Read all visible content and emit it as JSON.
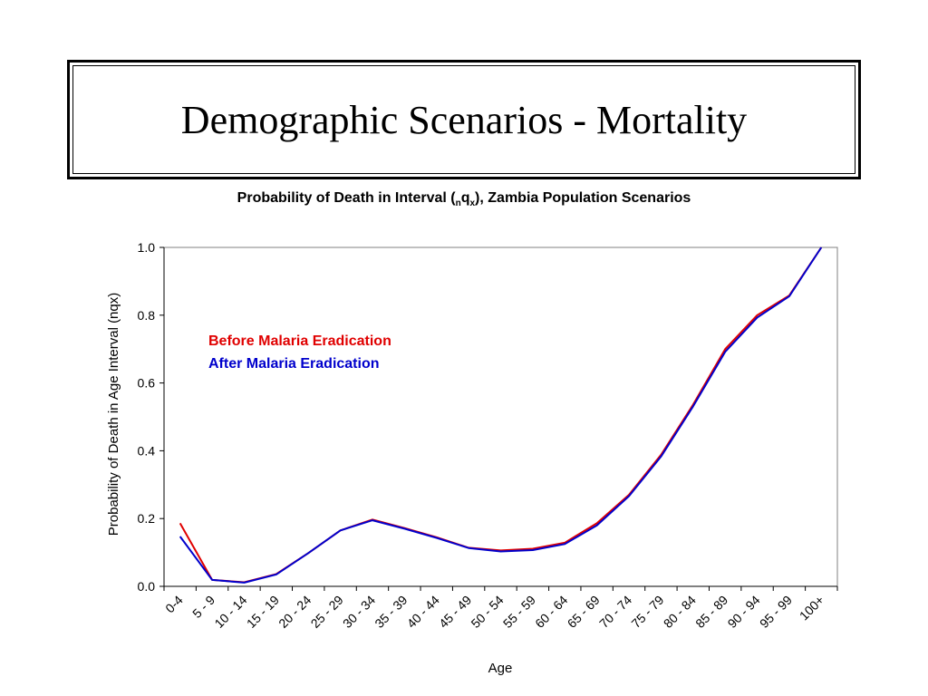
{
  "slide": {
    "title": "Demographic Scenarios - Mortality"
  },
  "chart_data": {
    "type": "line",
    "title_parts": {
      "before": "Probability of Death in Interval (",
      "sub1": "n",
      "mid": "q",
      "sub2": "x",
      "after": "), Zambia Population Scenarios"
    },
    "xlabel": "Age",
    "ylabel": "Probability of Death in Age Interval (nqx)",
    "ylim": [
      0,
      1
    ],
    "yticks": [
      "0.0",
      "0.2",
      "0.4",
      "0.6",
      "0.8",
      "1.0"
    ],
    "grid": false,
    "legend_placement": "upper-left (inside plot)",
    "categories": [
      "0-4",
      "5 - 9",
      "10 - 14",
      "15 - 19",
      "20 - 24",
      "25 - 29",
      "30 - 34",
      "35 - 39",
      "40 - 44",
      "45 - 49",
      "50 - 54",
      "55 - 59",
      "60 - 64",
      "65 - 69",
      "70 - 74",
      "75 - 79",
      "80 - 84",
      "85 - 89",
      "90 - 94",
      "95 - 99",
      "100+"
    ],
    "series": [
      {
        "name": "Before Malaria Eradication",
        "color": "#e00000",
        "values": [
          0.186,
          0.019,
          0.012,
          0.036,
          0.098,
          0.165,
          0.197,
          0.172,
          0.145,
          0.114,
          0.106,
          0.111,
          0.129,
          0.186,
          0.27,
          0.388,
          0.536,
          0.7,
          0.8,
          0.858,
          1.0
        ]
      },
      {
        "name": "After Malaria Eradication",
        "color": "#0000cc",
        "values": [
          0.147,
          0.019,
          0.011,
          0.035,
          0.098,
          0.165,
          0.195,
          0.17,
          0.143,
          0.113,
          0.103,
          0.107,
          0.125,
          0.18,
          0.266,
          0.383,
          0.531,
          0.692,
          0.793,
          0.856,
          1.0
        ]
      }
    ]
  }
}
